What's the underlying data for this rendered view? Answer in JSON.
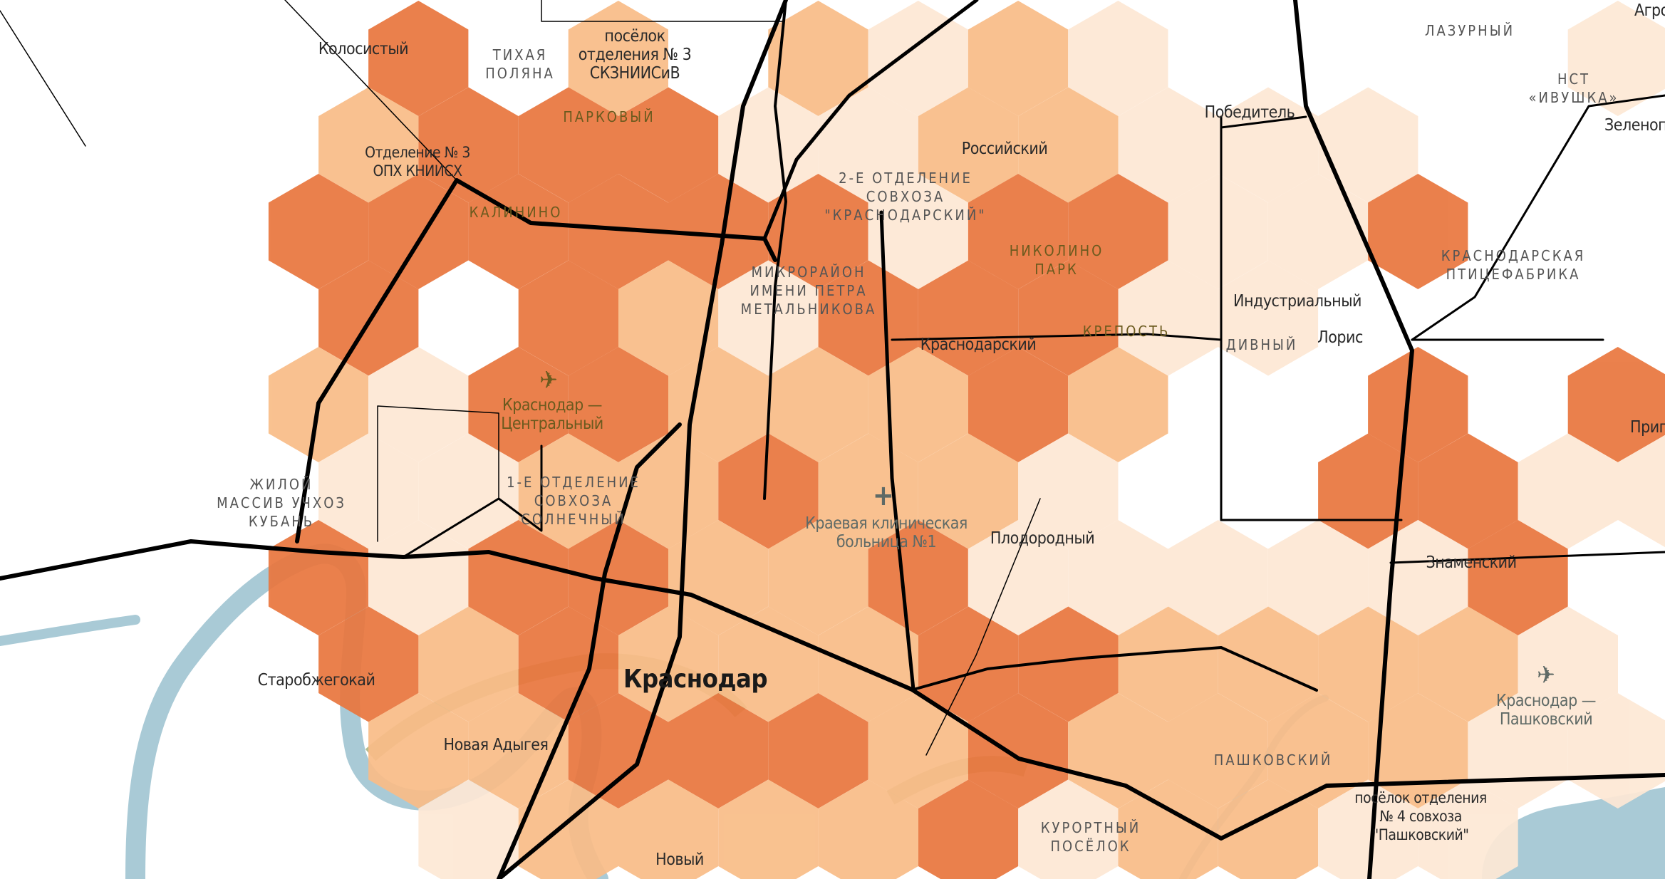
{
  "map": {
    "colors": {
      "high": "#E9773F",
      "medium": "#F9BD88",
      "low": "#FDE8D5",
      "none": "transparent",
      "water": "#A9CAD6",
      "park": "#A7B07A",
      "road": "#000000"
    },
    "legend_levels": [
      "none",
      "low",
      "medium",
      "high"
    ],
    "hex_density_rows": [
      [
        0,
        3,
        0,
        2,
        0,
        2,
        1,
        2,
        1,
        0,
        0,
        0,
        0,
        1
      ],
      [
        0,
        2,
        3,
        3,
        3,
        1,
        1,
        2,
        2,
        1,
        1,
        1,
        0,
        0,
        0
      ],
      [
        3,
        3,
        3,
        3,
        3,
        3,
        1,
        3,
        3,
        1,
        1,
        3,
        0,
        0
      ],
      [
        0,
        3,
        0,
        3,
        2,
        1,
        3,
        3,
        3,
        1,
        1,
        0,
        0,
        0,
        0
      ],
      [
        2,
        1,
        3,
        3,
        2,
        2,
        2,
        3,
        2,
        0,
        0,
        3,
        0,
        3
      ],
      [
        0,
        1,
        1,
        2,
        2,
        3,
        2,
        2,
        1,
        0,
        0,
        3,
        3,
        1,
        1
      ],
      [
        3,
        1,
        3,
        3,
        2,
        2,
        3,
        1,
        1,
        1,
        1,
        1,
        3,
        0
      ],
      [
        0,
        3,
        2,
        3,
        2,
        2,
        2,
        3,
        3,
        2,
        2,
        2,
        2,
        1,
        0
      ],
      [
        0,
        2,
        2,
        3,
        3,
        3,
        2,
        3,
        2,
        2,
        2,
        2,
        1,
        1
      ],
      [
        0,
        0,
        1,
        2,
        2,
        2,
        2,
        3,
        1,
        2,
        2,
        1,
        1,
        0,
        0
      ]
    ]
  },
  "labels": {
    "kolosisty": "Колосистый",
    "tikhaya_polyana": [
      "ТИХАЯ",
      "ПОЛЯНА"
    ],
    "poselok3": [
      "посёлок",
      "отделения № 3",
      "СКЗНИИСиВ"
    ],
    "parkovy": "ПАРКОВЫЙ",
    "otdelenie3": [
      "Отделение № 3",
      "ОПХ КНИИСХ"
    ],
    "kalinino": "КАЛИНИНО",
    "rossiysky": "Российский",
    "otd2": [
      "2-Е ОТДЕЛЕНИЕ",
      "СОВХОЗА",
      "\"КРАСНОДАРСКИЙ\""
    ],
    "nikolino": [
      "НИКОЛИНО",
      "ПАРК"
    ],
    "metalnikova": [
      "МИКРОРАЙОН",
      "ИМЕНИ ПЕТРА",
      "МЕТАЛЬНИКОВА"
    ],
    "krasnodarsky": "Краснодарский",
    "krepost": "КРЕПОСТЬ",
    "divny": "ДИВНЫЙ",
    "industrialny": "Индустриальный",
    "loris": "Лорис",
    "pobeditel": "Победитель",
    "lazurny": "ЛАЗУРНЫЙ",
    "ivushka": [
      "НСТ",
      "«ИВУШКА»"
    ],
    "zelenopolsky": "Зеленопольский",
    "agro": "Агро",
    "ptitsefabrika": [
      "КРАСНОДАРСКАЯ",
      "ПТИЦЕФАБРИКА"
    ],
    "airport_central": [
      "Краснодар —",
      "Центральный"
    ],
    "uchkhoz": [
      "ЖИЛОЙ",
      "МАССИВ УЧХОЗ",
      "КУБАНЬ"
    ],
    "otd1": [
      "1-Е ОТДЕЛЕНИЕ",
      "СОВХОЗА",
      "СОЛНЕЧНЫЙ"
    ],
    "hospital": [
      "Краевая клиническая",
      "больница №1"
    ],
    "plodorodny": "Плодородный",
    "znamensky": "Знаменский",
    "prigo": "Пригородный",
    "starobzhegokay": "Старобжегокай",
    "krasnodar": "Краснодар",
    "novaya_adygeya": "Новая Адыгея",
    "pashkovsky": "ПАШКОВСКИЙ",
    "airport_pashkovsky": [
      "Краснодар —",
      "Пашковский"
    ],
    "poselok4": [
      "посёлок отделения",
      "№ 4 совхоза",
      "\"Пашковский\""
    ],
    "kurortny": [
      "КУРОРТНЫЙ",
      "ПОСЁЛОК"
    ],
    "novy": "Новый"
  },
  "icons": {
    "airport": "airplane-icon",
    "hospital": "cross-icon"
  }
}
